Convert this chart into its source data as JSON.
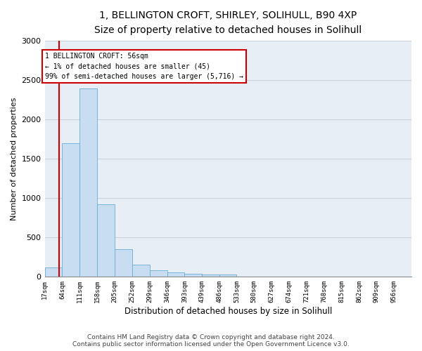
{
  "title": "1, BELLINGTON CROFT, SHIRLEY, SOLIHULL, B90 4XP",
  "subtitle": "Size of property relative to detached houses in Solihull",
  "xlabel": "Distribution of detached houses by size in Solihull",
  "ylabel": "Number of detached properties",
  "footer_line1": "Contains HM Land Registry data © Crown copyright and database right 2024.",
  "footer_line2": "Contains public sector information licensed under the Open Government Licence v3.0.",
  "bin_edges": [
    17,
    64,
    111,
    158,
    205,
    252,
    299,
    346,
    393,
    439,
    486,
    533,
    580,
    627,
    674,
    721,
    768,
    815,
    862,
    909,
    956
  ],
  "bar_heights": [
    120,
    1700,
    2390,
    920,
    350,
    155,
    80,
    55,
    40,
    30,
    30,
    5,
    5,
    2,
    2,
    1,
    1,
    0,
    0,
    0
  ],
  "bar_color": "#c9ddf2",
  "bar_edge_color": "#6aaed6",
  "property_size": 56,
  "annotation_title": "1 BELLINGTON CROFT: 56sqm",
  "annotation_line1": "← 1% of detached houses are smaller (45)",
  "annotation_line2": "99% of semi-detached houses are larger (5,716) →",
  "annotation_box_color": "#ffffff",
  "annotation_box_edge_color": "#cc0000",
  "red_line_color": "#cc0000",
  "ylim": [
    0,
    3000
  ],
  "yticks": [
    0,
    500,
    1000,
    1500,
    2000,
    2500,
    3000
  ],
  "grid_color": "#c8d0dc",
  "background_color": "#e8eef6",
  "title_fontsize": 10,
  "subtitle_fontsize": 9,
  "footer_fontsize": 6.5
}
